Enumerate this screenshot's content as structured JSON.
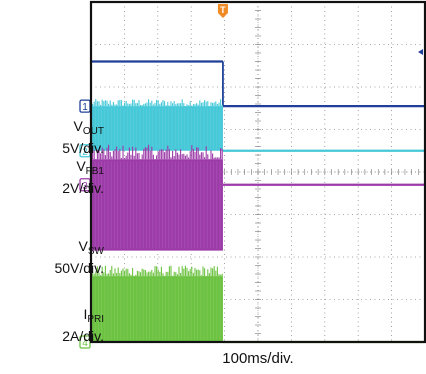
{
  "chart_data": {
    "type": "line",
    "subtype": "oscilloscope-capture",
    "x_axis_label": "100ms/div.",
    "grid": true,
    "trigger_marker": "T",
    "channels": [
      {
        "number": "1",
        "name": "V",
        "subscript": "OUT",
        "scale": "5V/div.",
        "color": "#1f3f9a",
        "shape": "step",
        "segments": [
          {
            "x_div": [
              0.0,
              3.95
            ],
            "y_div": 6.6
          },
          {
            "x_div": [
              3.95,
              10.0
            ],
            "y_div": 5.55
          }
        ]
      },
      {
        "number": "2",
        "name": "V",
        "subscript": "FB1",
        "scale": "2V/div.",
        "color": "#45c8d8",
        "shape": "burst-then-flat",
        "segments": [
          {
            "x_div": [
              0.0,
              3.95
            ],
            "y_div": [
              4.5,
              5.55
            ],
            "style": "switching"
          },
          {
            "x_div": [
              3.95,
              10.0
            ],
            "y_div": 4.5,
            "style": "flat"
          }
        ]
      },
      {
        "number": "3",
        "name": "V",
        "subscript": "SW",
        "scale": "50V/div.",
        "color": "#9c3aa8",
        "shape": "burst-then-flat",
        "segments": [
          {
            "x_div": [
              0.0,
              3.95
            ],
            "y_div": [
              2.15,
              4.3
            ],
            "style": "switching"
          },
          {
            "x_div": [
              3.95,
              10.0
            ],
            "y_div": 3.7,
            "style": "flat"
          }
        ]
      },
      {
        "number": "4",
        "name": "I",
        "subscript": "PRI",
        "scale": "2A/div.",
        "color": "#6cc241",
        "shape": "burst-then-flat",
        "segments": [
          {
            "x_div": [
              0.0,
              3.95
            ],
            "y_div": [
              0.0,
              1.55
            ],
            "style": "switching"
          },
          {
            "x_div": [
              3.95,
              10.0
            ],
            "y_div": 0.0,
            "style": "flat"
          }
        ]
      }
    ]
  }
}
